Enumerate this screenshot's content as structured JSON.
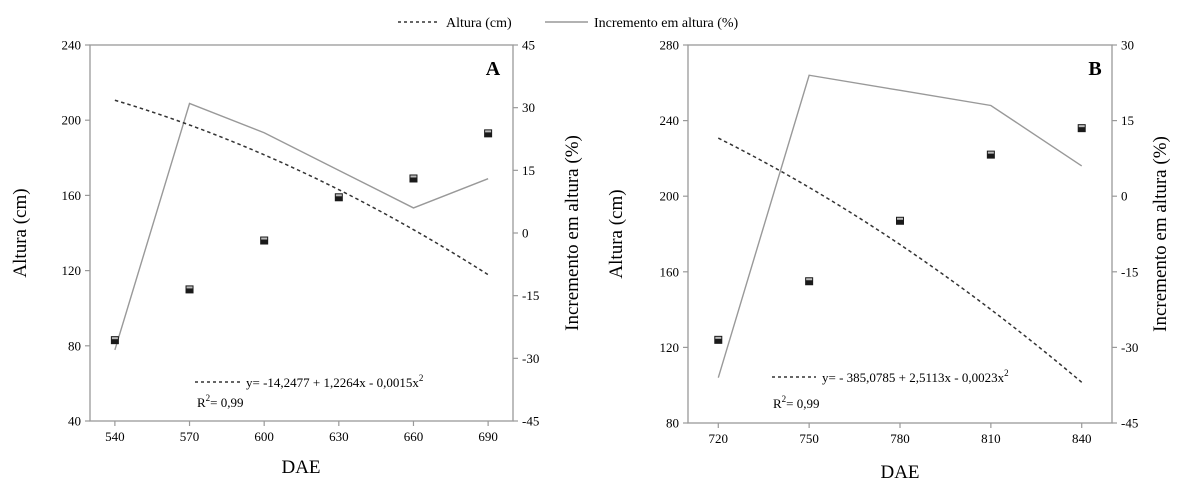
{
  "legend": {
    "fit_label": "Altura (cm)",
    "increment_label": "Incremento em altura (%)"
  },
  "chart_data": [
    {
      "type": "line",
      "panel_label": "A",
      "xlabel": "DAE",
      "ylabel": "Altura (cm)",
      "y2label": "Incremento em altura (%)",
      "x_ticks": [
        540,
        570,
        600,
        630,
        660,
        690
      ],
      "xlim": [
        530,
        700
      ],
      "ylim": [
        40,
        240
      ],
      "y_ticks": [
        40,
        80,
        120,
        160,
        200,
        240
      ],
      "y2lim": [
        -45,
        45
      ],
      "y2_ticks": [
        -45,
        -30,
        -15,
        0,
        15,
        30,
        45
      ],
      "grid": false,
      "series": [
        {
          "role": "observed",
          "style": "square-markers",
          "x": [
            540,
            570,
            600,
            630,
            660,
            690
          ],
          "y": [
            83,
            110,
            136,
            159,
            169,
            193
          ]
        },
        {
          "name": "Altura (cm)",
          "role": "fit",
          "style": "dashed",
          "equation_coeffs": [
            -14.2477,
            1.2264,
            -0.0015
          ],
          "x_range": [
            540,
            690
          ]
        },
        {
          "name": "Incremento em altura (%)",
          "role": "increment",
          "style": "solid",
          "axis": "right",
          "x": [
            540,
            570,
            600,
            630,
            660,
            690
          ],
          "y": [
            -28,
            31,
            24,
            15,
            6,
            13
          ]
        }
      ],
      "equation": "y= -14,2477 + 1,2264x - 0,0015x",
      "equation_exp": "2",
      "r2_prefix": "R",
      "r2_sup": "2",
      "r2_value": "= 0,99",
      "colors": {
        "increment": "#999999",
        "fit": "#333333",
        "axis": "#999999"
      }
    },
    {
      "type": "line",
      "panel_label": "B",
      "xlabel": "DAE",
      "ylabel": "Altura (cm)",
      "y2label": "Incremento em altura (%)",
      "x_ticks": [
        720,
        750,
        780,
        810,
        840
      ],
      "xlim": [
        710,
        850
      ],
      "ylim": [
        80,
        280
      ],
      "y_ticks": [
        80,
        120,
        160,
        200,
        240,
        280
      ],
      "y2lim": [
        -45,
        30
      ],
      "y2_ticks": [
        -45,
        -30,
        -15,
        0,
        15,
        30
      ],
      "grid": false,
      "series": [
        {
          "role": "observed",
          "style": "square-markers",
          "x": [
            720,
            750,
            780,
            810,
            840
          ],
          "y": [
            124,
            155,
            187,
            222,
            236
          ]
        },
        {
          "name": "Altura (cm)",
          "role": "fit",
          "style": "dashed",
          "equation_coeffs": [
            -385.0785,
            2.5113,
            -0.0023
          ],
          "x_range": [
            720,
            840
          ]
        },
        {
          "name": "Incremento em altura (%)",
          "role": "increment",
          "style": "solid",
          "axis": "right",
          "x": [
            720,
            750,
            780,
            810,
            840
          ],
          "y": [
            -36,
            24,
            21,
            18,
            6
          ]
        }
      ],
      "equation": "y= - 385,0785 + 2,5113x - 0,0023x",
      "equation_exp": "2",
      "r2_prefix": "R",
      "r2_sup": "2",
      "r2_value": "= 0,99",
      "colors": {
        "increment": "#999999",
        "fit": "#333333",
        "axis": "#999999"
      }
    }
  ]
}
